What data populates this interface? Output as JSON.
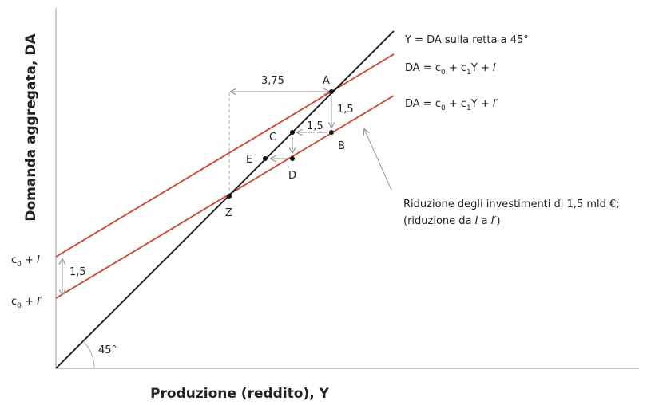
{
  "axes": {
    "y_label": "Domanda aggregata, DA",
    "x_label": "Produzione (reddito), Y"
  },
  "line_labels": {
    "line45": "Y = DA sulla retta a 45°",
    "da_high": [
      "DA = c",
      "0",
      " + c",
      "1",
      "Y + ",
      "I"
    ],
    "da_low": [
      "DA = c",
      "0",
      " + c",
      "1",
      "Y + ",
      "I′"
    ]
  },
  "intercepts": {
    "high": [
      "c",
      "0",
      " + ",
      "I"
    ],
    "low": [
      "c",
      "0",
      " + ",
      "I′"
    ],
    "gap": "1,5"
  },
  "points": {
    "a": "A",
    "b": "B",
    "c": "C",
    "d": "D",
    "e": "E",
    "z": "Z"
  },
  "steps": {
    "total": "3,75",
    "a_to_b": "1,5",
    "b_to_c": "1,5"
  },
  "angle": "45°",
  "annotation": {
    "line1": "Riduzione degli investimenti di 1,5 mld €;",
    "line2": [
      "(riduzione da ",
      "I",
      " a ",
      "I′",
      ")"
    ]
  }
}
